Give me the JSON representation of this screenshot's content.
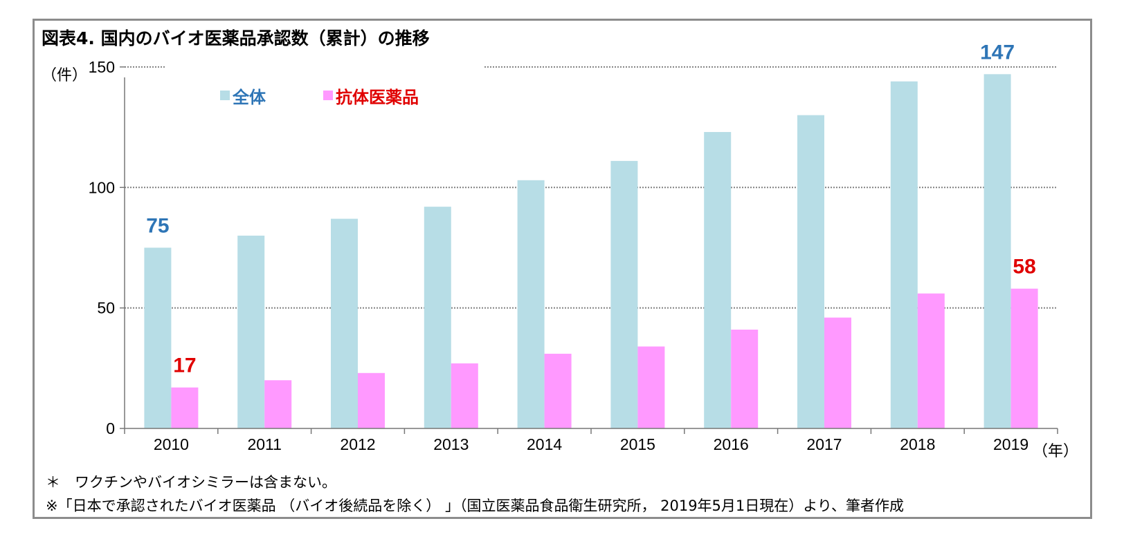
{
  "chart_data": {
    "type": "bar",
    "title": "図表4. 国内のバイオ医薬品承認数（累計）の推移",
    "ylabel": "（件）",
    "xlabel": "（年）",
    "ylim": [
      0,
      160
    ],
    "yticks": [
      0,
      50,
      100,
      150
    ],
    "ytick_labels": [
      "0",
      "50",
      "100",
      "150"
    ],
    "categories": [
      "2010",
      "2011",
      "2012",
      "2013",
      "2014",
      "2015",
      "2016",
      "2017",
      "2018",
      "2019"
    ],
    "series": [
      {
        "name": "全体",
        "color": "#b7dde6",
        "values": [
          75,
          80,
          87,
          92,
          103,
          111,
          123,
          130,
          144,
          147
        ]
      },
      {
        "name": "抗体医薬品",
        "color": "#ff99ff",
        "values": [
          17,
          20,
          23,
          27,
          31,
          34,
          41,
          46,
          56,
          58
        ]
      }
    ],
    "data_labels": [
      {
        "text": "75",
        "series": 0,
        "index": 0,
        "color": "#2e75b6"
      },
      {
        "text": "147",
        "series": 0,
        "index": 9,
        "color": "#2e75b6"
      },
      {
        "text": "17",
        "series": 1,
        "index": 0,
        "color": "#e00000"
      },
      {
        "text": "58",
        "series": 1,
        "index": 9,
        "color": "#e00000"
      }
    ],
    "legend": {
      "position": "top",
      "label_colors": [
        "#2e75b6",
        "#e00000"
      ]
    },
    "grid": true,
    "grid_style": "dotted",
    "gridline_color": "#808080"
  },
  "notes": [
    "＊　ワクチンやバイオシミラーは含まない。",
    "※「日本で承認されたバイオ医薬品 （バイオ後続品を除く） 」（国立医薬品食品衛生研究所， 2019年5月1日現在）より、筆者作成"
  ]
}
